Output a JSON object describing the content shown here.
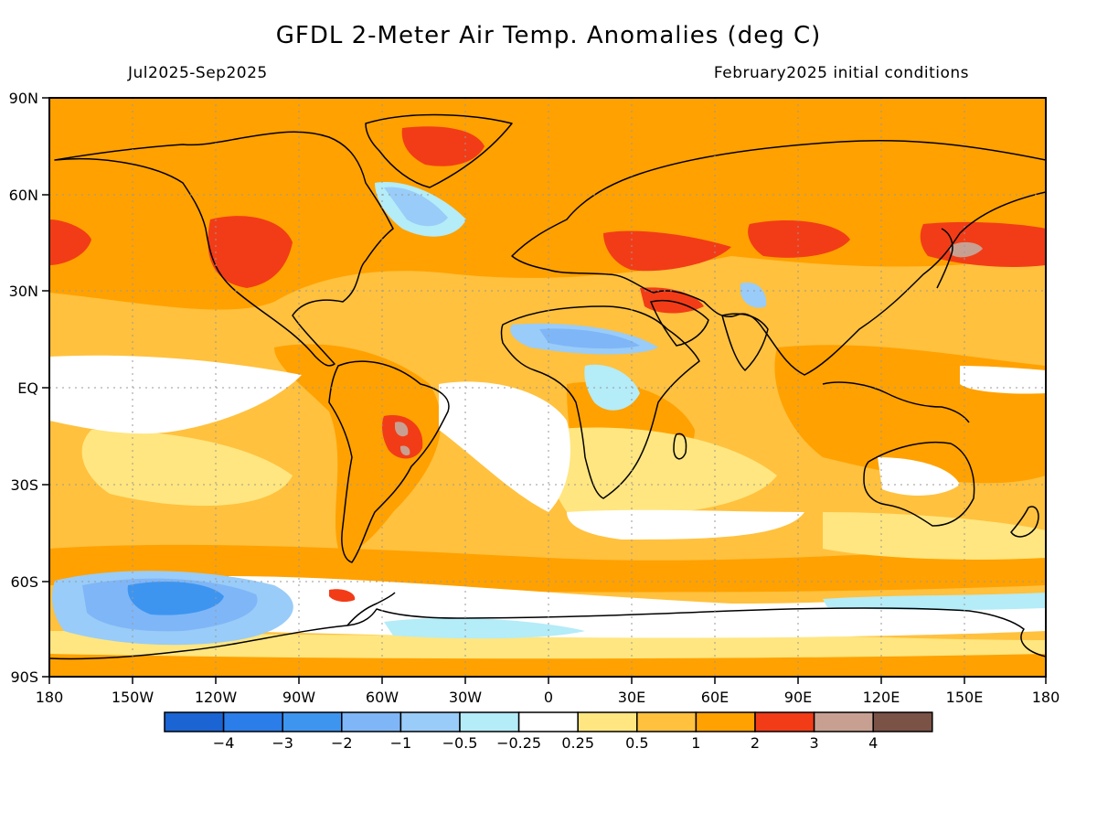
{
  "title": "GFDL 2-Meter Air Temp. Anomalies (deg C)",
  "period": "Jul2025-Sep2025",
  "init": "February2025 initial conditions",
  "lat_labels": [
    "90N",
    "60N",
    "30N",
    "EQ",
    "30S",
    "60S",
    "90S"
  ],
  "lon_labels": [
    "180",
    "150W",
    "120W",
    "90W",
    "60W",
    "30W",
    "0",
    "30E",
    "60E",
    "90E",
    "120E",
    "150E",
    "180"
  ],
  "legend": {
    "colors": [
      "#1a64d4",
      "#2b7de9",
      "#3d95f0",
      "#7fb6f7",
      "#99ccf8",
      "#b4ecf8",
      "#ffffff",
      "#ffe680",
      "#ffc13e",
      "#ffa100",
      "#f23c17",
      "#c8a092",
      "#7a5246"
    ],
    "labels": [
      "-4",
      "-3",
      "-2",
      "-1",
      "-0.5",
      "-0.25",
      "0.25",
      "0.5",
      "1",
      "2",
      "3",
      "4"
    ]
  }
}
